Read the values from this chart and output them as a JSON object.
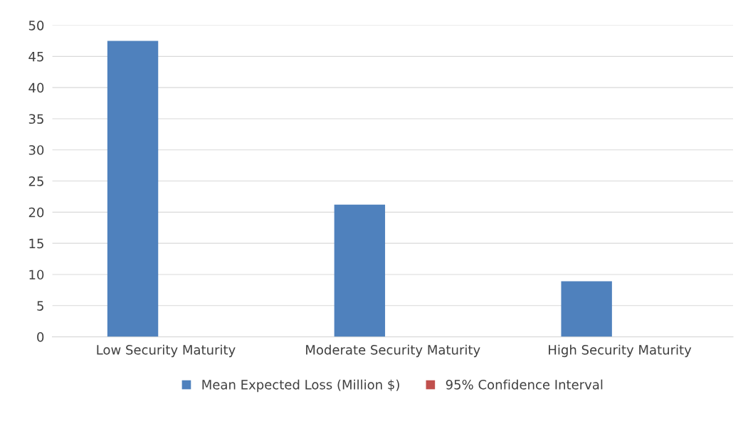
{
  "chart_data": {
    "type": "bar",
    "categories": [
      "Low Security Maturity",
      "Moderate Security Maturity",
      "High Security Maturity"
    ],
    "series": [
      {
        "name": "Mean Expected Loss (Million $)",
        "color": "#4f81bd",
        "values": [
          47.5,
          21.2,
          8.9
        ]
      },
      {
        "name": "95% Confidence Interval",
        "color": "#c0504d",
        "values": [
          null,
          null,
          null
        ]
      }
    ],
    "ylim": [
      0,
      50
    ],
    "yticks": [
      0,
      5,
      10,
      15,
      20,
      25,
      30,
      35,
      40,
      45,
      50
    ],
    "grid": "y",
    "legend": "bottom"
  }
}
